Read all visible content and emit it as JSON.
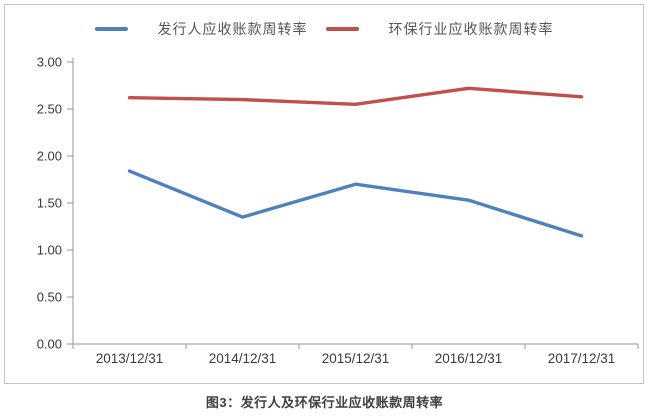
{
  "caption": "图3：发行人及环保行业应收账款周转率",
  "legend": {
    "series1_label": "发行人应收账款周转率",
    "series2_label": "环保行业应收账款周转率"
  },
  "colors": {
    "series1": "#4f81bd",
    "series2": "#c0504d",
    "axis_line": "#a6a6a6",
    "tick_label": "#3a3a3a",
    "box_border": "#c4c4c4",
    "caption_text": "#404040"
  },
  "chart_data": {
    "type": "line",
    "categories": [
      "2013/12/31",
      "2014/12/31",
      "2015/12/31",
      "2016/12/31",
      "2017/12/31"
    ],
    "series": [
      {
        "name": "发行人应收账款周转率",
        "color": "#4f81bd",
        "values": [
          1.84,
          1.35,
          1.7,
          1.53,
          1.15
        ]
      },
      {
        "name": "环保行业应收账款周转率",
        "color": "#c0504d",
        "values": [
          2.62,
          2.6,
          2.55,
          2.72,
          2.63
        ]
      }
    ],
    "title": "图3：发行人及环保行业应收账款周转率",
    "xlabel": "",
    "ylabel": "",
    "ylim": [
      0.0,
      3.0
    ],
    "ytick_step": 0.5,
    "ytick_labels": [
      "0.00",
      "0.50",
      "1.00",
      "1.50",
      "2.00",
      "2.50",
      "3.00"
    ],
    "grid": false,
    "legend_position": "top"
  }
}
